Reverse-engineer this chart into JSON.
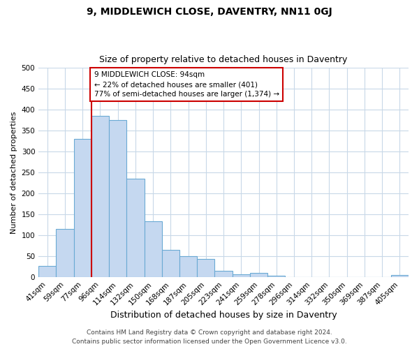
{
  "title": "9, MIDDLEWICH CLOSE, DAVENTRY, NN11 0GJ",
  "subtitle": "Size of property relative to detached houses in Daventry",
  "xlabel": "Distribution of detached houses by size in Daventry",
  "ylabel": "Number of detached properties",
  "bar_labels": [
    "41sqm",
    "59sqm",
    "77sqm",
    "96sqm",
    "114sqm",
    "132sqm",
    "150sqm",
    "168sqm",
    "187sqm",
    "205sqm",
    "223sqm",
    "241sqm",
    "259sqm",
    "278sqm",
    "296sqm",
    "314sqm",
    "332sqm",
    "350sqm",
    "369sqm",
    "387sqm",
    "405sqm"
  ],
  "bar_heights": [
    27,
    115,
    330,
    385,
    375,
    235,
    133,
    66,
    50,
    44,
    15,
    7,
    11,
    3,
    1,
    1,
    1,
    1,
    1,
    1,
    6
  ],
  "bar_color": "#c5d8f0",
  "bar_edge_color": "#6aaad4",
  "vline_x_index": 3,
  "vline_color": "#cc0000",
  "ylim": [
    0,
    500
  ],
  "yticks": [
    0,
    50,
    100,
    150,
    200,
    250,
    300,
    350,
    400,
    450,
    500
  ],
  "annotation_box_text": "9 MIDDLEWICH CLOSE: 94sqm\n← 22% of detached houses are smaller (401)\n77% of semi-detached houses are larger (1,374) →",
  "annotation_box_color": "#cc0000",
  "footnote1": "Contains HM Land Registry data © Crown copyright and database right 2024.",
  "footnote2": "Contains public sector information licensed under the Open Government Licence v3.0.",
  "background_color": "#ffffff",
  "grid_color": "#c8d8e8",
  "title_fontsize": 10,
  "subtitle_fontsize": 9,
  "ylabel_fontsize": 8,
  "xlabel_fontsize": 9,
  "tick_fontsize": 7.5,
  "annot_fontsize": 7.5,
  "footnote_fontsize": 6.5
}
